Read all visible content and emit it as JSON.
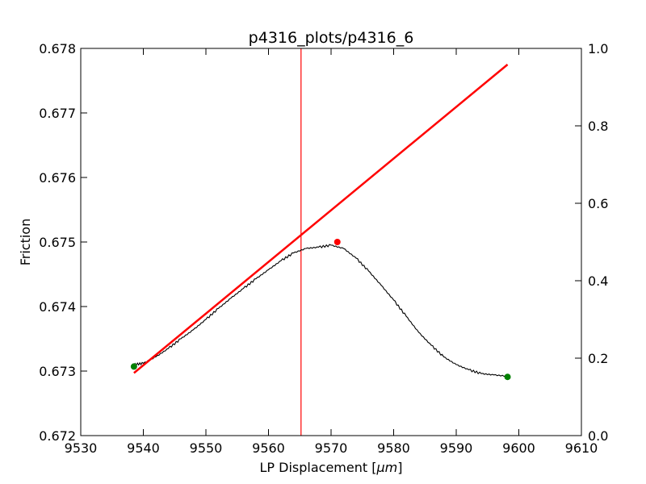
{
  "chart_data": {
    "type": "line",
    "title": "p4316_plots/p4316_6",
    "xlabel_prefix": "LP Displacement [",
    "xlabel_mu": "μ",
    "xlabel_unit": "m",
    "xlabel_suffix": "]",
    "ylabel": "Friction",
    "xlim": [
      9530,
      9610
    ],
    "ylim": [
      0.672,
      0.678
    ],
    "y2lim": [
      0.0,
      1.0
    ],
    "x_ticks": [
      "9530",
      "9540",
      "9550",
      "9560",
      "9570",
      "9580",
      "9590",
      "9600",
      "9610"
    ],
    "y_ticks": [
      "0.672",
      "0.673",
      "0.674",
      "0.675",
      "0.676",
      "0.677",
      "0.678"
    ],
    "y2_ticks": [
      "0.0",
      "0.2",
      "0.4",
      "0.6",
      "0.8",
      "1.0"
    ],
    "grid": false,
    "series": [
      {
        "kind": "friction_trace",
        "color": "#000000",
        "x": [
          9538.5,
          9540,
          9542,
          9544,
          9546,
          9548,
          9550,
          9552,
          9554,
          9556,
          9558,
          9560,
          9562,
          9564,
          9566,
          9568,
          9570,
          9572,
          9574,
          9576,
          9578,
          9580,
          9582,
          9584,
          9586,
          9588,
          9590,
          9592,
          9594,
          9596,
          9598.2
        ],
        "y": [
          0.6731,
          0.67312,
          0.67322,
          0.67335,
          0.6735,
          0.67364,
          0.6738,
          0.67397,
          0.67413,
          0.67428,
          0.67443,
          0.67457,
          0.67471,
          0.67483,
          0.6749,
          0.67492,
          0.67495,
          0.6749,
          0.67475,
          0.67455,
          0.67433,
          0.6741,
          0.67385,
          0.6736,
          0.6734,
          0.67322,
          0.6731,
          0.67302,
          0.67296,
          0.67294,
          0.67292
        ]
      },
      {
        "kind": "linear_fit",
        "color": "#ff0000",
        "x": [
          9538.5,
          9598.2
        ],
        "y": [
          0.67297,
          0.67775
        ]
      }
    ],
    "markers": [
      {
        "kind": "endpoint",
        "color": "#008000",
        "x": 9538.5,
        "y": 0.67307
      },
      {
        "kind": "endpoint",
        "color": "#008000",
        "x": 9598.2,
        "y": 0.67291
      },
      {
        "kind": "peak",
        "color": "#ff0000",
        "x": 9571.0,
        "y": 0.675
      }
    ],
    "vline": {
      "color": "#ff0000",
      "x": 9565.2
    }
  }
}
